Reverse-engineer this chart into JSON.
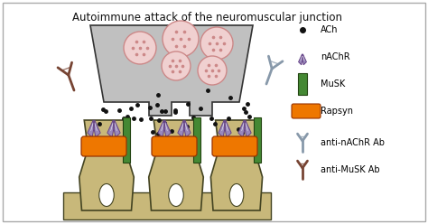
{
  "title": "Autoimmune attack of the neuromuscular junction",
  "bg_color": "#ffffff",
  "border_color": "#aaaaaa",
  "nerve_color": "#c0c0c0",
  "nerve_outline": "#333333",
  "vesicle_fill": "#f0d0d0",
  "vesicle_outline": "#cc8888",
  "dot_color": "#111111",
  "muscle_color": "#c8b87a",
  "muscle_outline": "#444422",
  "receptor_color": "#9988bb",
  "receptor_outline": "#664488",
  "musk_color": "#448833",
  "musk_outline": "#224411",
  "rapsyn_color": "#ee7700",
  "rapsyn_outline": "#993300",
  "anti_nachr_color": "#8899aa",
  "anti_musk_color": "#774433",
  "legend_labels": [
    "ACh",
    "nAChR",
    "MuSK",
    "Rapsyn",
    "anti-nAChR Ab",
    "anti-MuSK Ab"
  ],
  "title_fontsize": 8.5,
  "legend_fontsize": 7.0
}
